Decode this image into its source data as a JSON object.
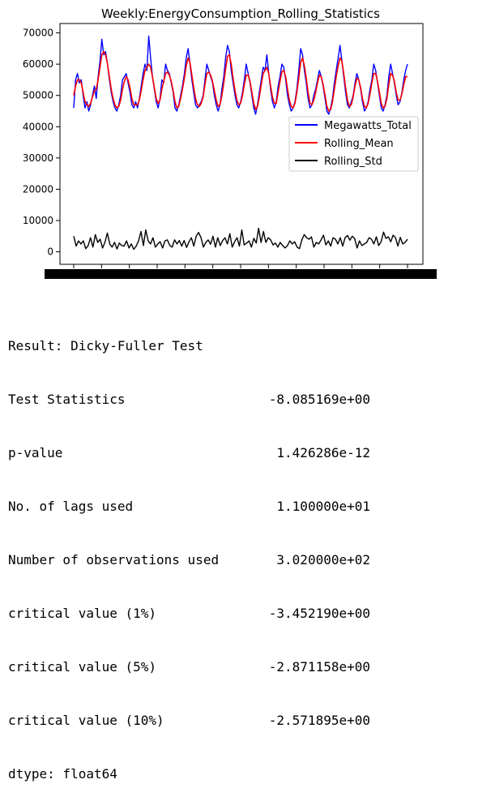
{
  "chart_data": {
    "type": "line",
    "title": "Weekly:EnergyConsumption_Rolling_Statistics",
    "xlabel": "",
    "ylabel": "",
    "ylim": [
      -4000,
      73000
    ],
    "yticks": [
      0,
      10000,
      20000,
      30000,
      40000,
      50000,
      60000,
      70000
    ],
    "xticks_legible": false,
    "legend_position": "center-right",
    "grid": false,
    "series": [
      {
        "name": "Megawatts_Total",
        "color": "#0000ff",
        "values": [
          46000,
          55000,
          57000,
          54000,
          55000,
          50000,
          46000,
          48000,
          45000,
          47000,
          50000,
          53000,
          49000,
          56000,
          61000,
          68000,
          63000,
          64000,
          60000,
          55000,
          51000,
          48000,
          46000,
          45000,
          47000,
          50000,
          55000,
          56000,
          57000,
          54000,
          51000,
          47000,
          46000,
          48000,
          46000,
          49000,
          53000,
          57000,
          60000,
          58000,
          69000,
          62000,
          56000,
          52000,
          48000,
          46000,
          49000,
          55000,
          54000,
          60000,
          58000,
          57000,
          54000,
          51000,
          46000,
          45000,
          47000,
          50000,
          53000,
          57000,
          62000,
          65000,
          60000,
          55000,
          51000,
          47000,
          46000,
          47000,
          48000,
          50000,
          55000,
          60000,
          58000,
          56000,
          54000,
          50000,
          47000,
          45000,
          47000,
          52000,
          56000,
          62000,
          66000,
          64000,
          58000,
          54000,
          50000,
          47000,
          46000,
          48000,
          51000,
          55000,
          60000,
          57000,
          54000,
          50000,
          46000,
          44000,
          47000,
          51000,
          55000,
          59000,
          58000,
          63000,
          57000,
          52000,
          48000,
          46000,
          48000,
          53000,
          56000,
          60000,
          59000,
          55000,
          50000,
          47000,
          45000,
          46000,
          48000,
          52000,
          58000,
          65000,
          63000,
          58000,
          54000,
          49000,
          46000,
          47000,
          50000,
          52000,
          55000,
          58000,
          56000,
          53000,
          49000,
          45000,
          44000,
          46000,
          49000,
          54000,
          58000,
          62000,
          66000,
          61000,
          56000,
          51000,
          47000,
          46000,
          48000,
          50000,
          54000,
          57000,
          55000,
          52000,
          48000,
          45000,
          46000,
          48000,
          52000,
          55000,
          60000,
          58000,
          54000,
          50000,
          46000,
          45000,
          47000,
          50000,
          56000,
          60000,
          57000,
          54000,
          50000,
          47000,
          48000,
          51000,
          55000,
          58000,
          60000
        ]
      },
      {
        "name": "Rolling_Mean",
        "color": "#ff0000",
        "values": [
          50000,
          53000,
          55000,
          55000,
          54000,
          51000,
          48000,
          47000,
          46500,
          47500,
          49500,
          51500,
          52000,
          55000,
          59000,
          63000,
          64000,
          63000,
          60000,
          56000,
          52000,
          49000,
          47000,
          46000,
          46500,
          48500,
          52000,
          54500,
          56000,
          55000,
          52500,
          49000,
          47000,
          47000,
          47000,
          48500,
          51500,
          55000,
          58000,
          59000,
          60000,
          59000,
          56000,
          52500,
          49000,
          47500,
          48500,
          52000,
          54500,
          57000,
          57500,
          56500,
          54500,
          51500,
          48000,
          46000,
          46500,
          49000,
          52000,
          55500,
          59500,
          62000,
          60500,
          56500,
          52500,
          49000,
          47000,
          46500,
          47500,
          49500,
          53500,
          57000,
          57500,
          56500,
          54500,
          51500,
          48500,
          46500,
          47000,
          50000,
          54000,
          58500,
          62500,
          63000,
          60000,
          55500,
          51500,
          48500,
          47000,
          47500,
          50000,
          53500,
          56500,
          56500,
          54500,
          51000,
          47500,
          45500,
          46500,
          49500,
          53500,
          57000,
          58000,
          59000,
          57000,
          53000,
          49500,
          47500,
          47500,
          51000,
          54500,
          57500,
          58000,
          56000,
          52000,
          48500,
          46500,
          46000,
          47500,
          51000,
          55500,
          60500,
          62000,
          59500,
          55500,
          51000,
          47500,
          47000,
          48500,
          51000,
          54000,
          56500,
          56000,
          53500,
          50000,
          46500,
          45000,
          45500,
          48000,
          52000,
          56000,
          59500,
          62000,
          61000,
          57000,
          52500,
          48500,
          46500,
          47000,
          49500,
          53000,
          55500,
          55000,
          52500,
          49000,
          46500,
          46000,
          47500,
          50500,
          54000,
          57000,
          57000,
          54500,
          51000,
          47500,
          46000,
          46500,
          49000,
          53500,
          57000,
          56500,
          54500,
          51000,
          48500,
          48500,
          50500,
          53500,
          56000,
          56000
        ]
      },
      {
        "name": "Rolling_Std",
        "color": "#000000",
        "values": [
          5000,
          1800,
          3500,
          2500,
          3500,
          1000,
          2000,
          4500,
          1500,
          5500,
          3000,
          4000,
          1200,
          3000,
          6000,
          2500,
          1500,
          3000,
          900,
          2800,
          2000,
          1800,
          3500,
          1200,
          2500,
          800,
          1800,
          3500,
          6500,
          2000,
          7000,
          3500,
          2500,
          4500,
          1500,
          2500,
          3200,
          1200,
          3500,
          3800,
          2000,
          1500,
          3800,
          2500,
          3600,
          1800,
          3600,
          1400,
          3200,
          4500,
          1800,
          5000,
          6200,
          4500,
          1500,
          3000,
          3800,
          2400,
          5000,
          1500,
          4500,
          2000,
          3600,
          4500,
          2500,
          5800,
          1500,
          3200,
          4500,
          1800,
          7000,
          2200,
          2800,
          3500,
          1500,
          4300,
          2800,
          7500,
          3000,
          6500,
          3000,
          4500,
          3800,
          2200,
          2800,
          1500,
          3000,
          2000,
          1200,
          2000,
          3500,
          2500,
          3200,
          1500,
          1000,
          3800,
          5500,
          4500,
          4000,
          4800,
          1500,
          3000,
          2500,
          3800,
          5300,
          2200,
          3500,
          1800,
          4500,
          4000,
          2500,
          4500,
          1800,
          4500,
          5200,
          3700,
          5000,
          4200,
          1200,
          3500,
          2000,
          2500,
          3000,
          4500,
          4000,
          2500,
          4800,
          2000,
          3200,
          6300,
          4300,
          4800,
          3200,
          5300,
          4500,
          1800,
          4600,
          2500,
          3000,
          4000
        ]
      }
    ],
    "stats_table": {
      "header": "Result: Dicky-Fuller Test",
      "rows": [
        {
          "label": "Test Statistics",
          "value": "-8.085169e+00"
        },
        {
          "label": "p-value",
          "value": "1.426286e-12"
        },
        {
          "label": "No. of lags used",
          "value": "1.100000e+01"
        },
        {
          "label": "Number of observations used",
          "value": "3.020000e+02"
        },
        {
          "label": "critical value (1%)",
          "value": "-3.452190e+00"
        },
        {
          "label": "critical value (5%)",
          "value": "-2.871158e+00"
        },
        {
          "label": "critical value (10%)",
          "value": "-2.571895e+00"
        }
      ],
      "dtype": "dtype: float64"
    }
  }
}
